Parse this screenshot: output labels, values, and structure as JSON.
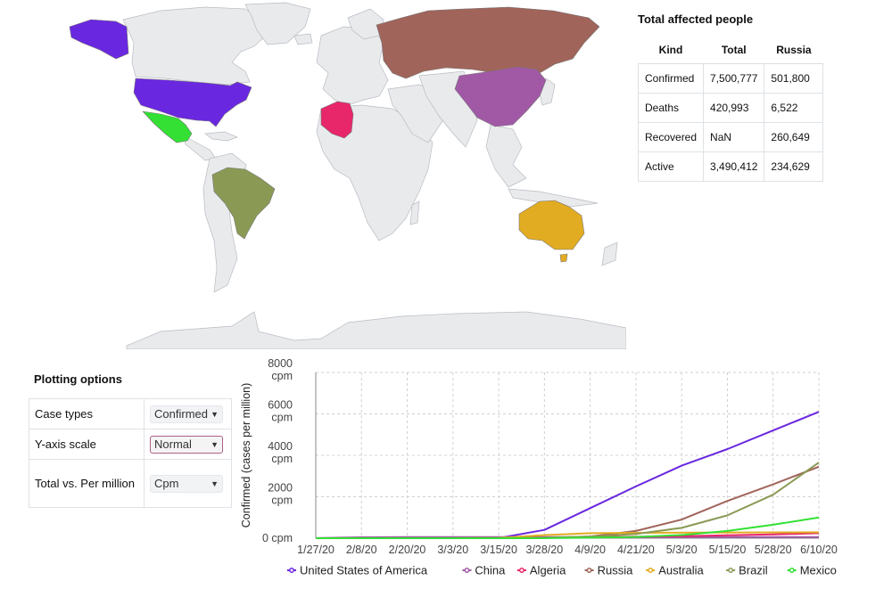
{
  "stats": {
    "title": "Total affected people",
    "columns": [
      "Kind",
      "Total",
      "Russia"
    ],
    "rows": [
      {
        "kind": "Confirmed",
        "total": "7,500,777",
        "region": "501,800"
      },
      {
        "kind": "Deaths",
        "total": "420,993",
        "region": "6,522"
      },
      {
        "kind": "Recovered",
        "total": "NaN",
        "region": "260,649"
      },
      {
        "kind": "Active",
        "total": "3,490,412",
        "region": "234,629"
      }
    ]
  },
  "options": {
    "title": "Plotting options",
    "rows": [
      {
        "label": "Case types",
        "value": "Confirmed"
      },
      {
        "label": "Y-axis scale",
        "value": "Normal"
      },
      {
        "label": "Total vs. Per million",
        "value": "Cpm"
      }
    ]
  },
  "map": {
    "base_color": "#e9eaec",
    "highlighted": [
      {
        "country": "United States of America",
        "color": "#6a27e0"
      },
      {
        "country": "Mexico",
        "color": "#33e033"
      },
      {
        "country": "Brazil",
        "color": "#8a9a55"
      },
      {
        "country": "Russia",
        "color": "#a1645a"
      },
      {
        "country": "China",
        "color": "#a159a6"
      },
      {
        "country": "Algeria",
        "color": "#e8276a"
      },
      {
        "country": "Australia",
        "color": "#e2ac22"
      }
    ]
  },
  "chart_data": {
    "type": "line",
    "ylabel": "Confirmed (cases per million)",
    "ylim": [
      0,
      8000
    ],
    "yticks": [
      "0 cpm",
      "2000 cpm",
      "4000 cpm",
      "6000 cpm",
      "8000 cpm"
    ],
    "ytick_values": [
      0,
      2000,
      4000,
      6000,
      8000
    ],
    "categories": [
      "1/27/20",
      "2/8/20",
      "2/20/20",
      "3/3/20",
      "3/15/20",
      "3/28/20",
      "4/9/20",
      "4/21/20",
      "5/3/20",
      "5/15/20",
      "5/28/20",
      "6/10/20"
    ],
    "grid": true,
    "legend_position": "bottom",
    "series": [
      {
        "name": "United States of America",
        "color": "#6a27e0",
        "values": [
          0,
          0,
          0,
          0,
          5,
          400,
          1450,
          2500,
          3500,
          4300,
          5200,
          6100
        ]
      },
      {
        "name": "China",
        "color": "#a159a6",
        "values": [
          5,
          45,
          55,
          57,
          57,
          57,
          58,
          58,
          58,
          58,
          58,
          58
        ]
      },
      {
        "name": "Algeria",
        "color": "#e8276a",
        "values": [
          0,
          0,
          0,
          0,
          1,
          20,
          50,
          70,
          100,
          140,
          180,
          240
        ]
      },
      {
        "name": "Russia",
        "color": "#a1645a",
        "values": [
          0,
          0,
          0,
          0,
          0,
          10,
          80,
          350,
          900,
          1800,
          2600,
          3450
        ]
      },
      {
        "name": "Australia",
        "color": "#e2ac22",
        "values": [
          0,
          0,
          0,
          0,
          10,
          150,
          240,
          260,
          270,
          275,
          280,
          285
        ]
      },
      {
        "name": "Brazil",
        "color": "#8a9a55",
        "values": [
          0,
          0,
          0,
          0,
          0,
          15,
          80,
          200,
          500,
          1100,
          2100,
          3650
        ]
      },
      {
        "name": "Mexico",
        "color": "#33e033",
        "values": [
          0,
          0,
          0,
          0,
          0,
          5,
          25,
          60,
          150,
          350,
          650,
          1000
        ]
      }
    ]
  }
}
